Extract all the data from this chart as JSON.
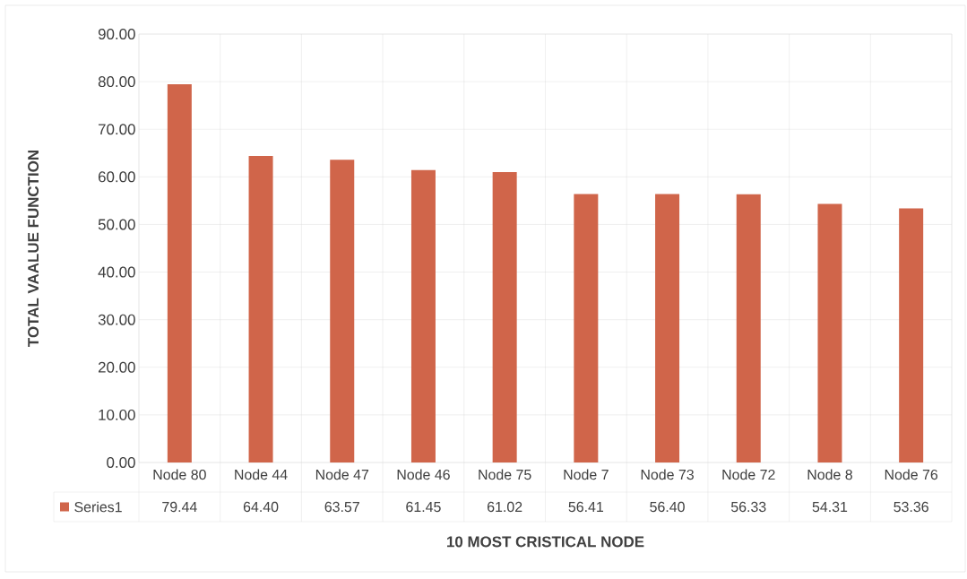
{
  "chart_data": {
    "type": "bar",
    "xlabel": "10 MOST CRISTICAL NODE",
    "ylabel": "TOTAL VAALUE FUNCTION",
    "categories": [
      "Node 80",
      "Node 44",
      "Node 47",
      "Node 46",
      "Node 75",
      "Node 7",
      "Node 73",
      "Node 72",
      "Node 8",
      "Node 76"
    ],
    "series": [
      {
        "name": "Series1",
        "color": "#d0654a",
        "values": [
          79.44,
          64.4,
          63.57,
          61.45,
          61.02,
          56.41,
          56.4,
          56.33,
          54.31,
          53.36
        ],
        "value_labels": [
          "79.44",
          "64.40",
          "63.57",
          "61.45",
          "61.02",
          "56.41",
          "56.40",
          "56.33",
          "54.31",
          "53.36"
        ]
      }
    ],
    "ylim": [
      0,
      90
    ],
    "yticks": [
      {
        "value": 0,
        "label": "0.00"
      },
      {
        "value": 10,
        "label": "10.00"
      },
      {
        "value": 20,
        "label": "20.00"
      },
      {
        "value": 30,
        "label": "30.00"
      },
      {
        "value": 40,
        "label": "40.00"
      },
      {
        "value": 50,
        "label": "50.00"
      },
      {
        "value": 60,
        "label": "60.00"
      },
      {
        "value": 70,
        "label": "70.00"
      },
      {
        "value": 80,
        "label": "80.00"
      },
      {
        "value": 90,
        "label": "90.00"
      }
    ],
    "grid": true
  }
}
